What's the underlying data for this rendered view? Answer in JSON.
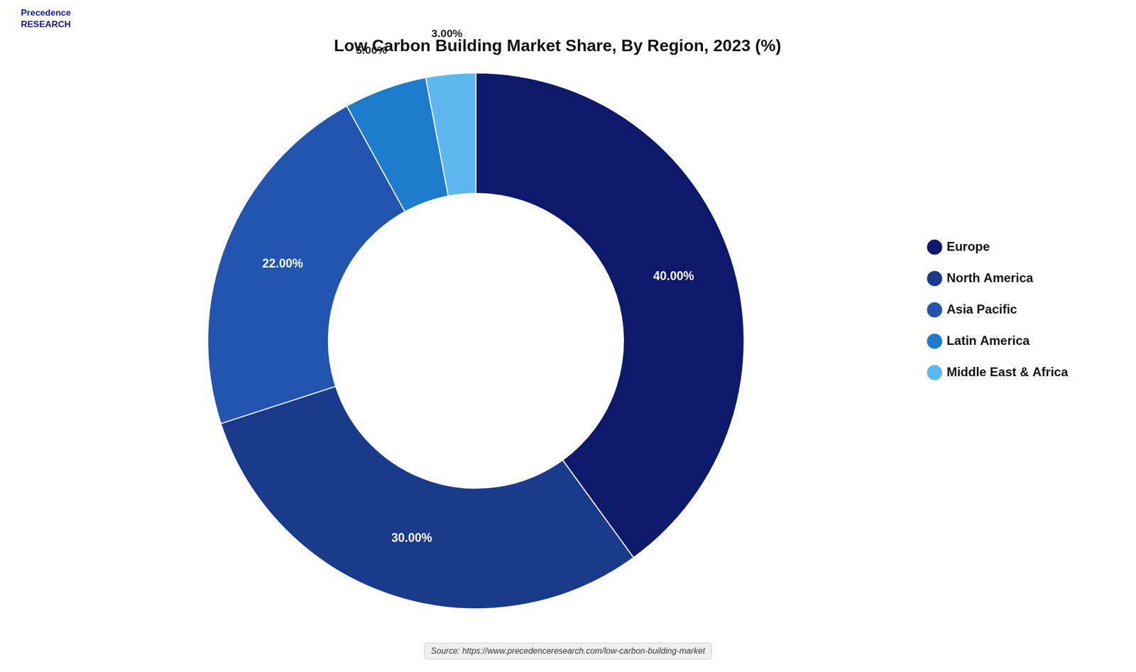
{
  "chart_data": {
    "type": "doughnut",
    "title": "Low Carbon Building Market Share, By Region, 2023 (%)",
    "categories": [
      "Europe",
      "North America",
      "Asia Pacific",
      "Latin America",
      "Middle East & Africa"
    ],
    "values": [
      40.0,
      30.0,
      22.0,
      5.0,
      3.0
    ],
    "value_labels": [
      "40.00%",
      "30.00%",
      "22.00%",
      "5.00%",
      "3.00%"
    ],
    "colors": [
      "#0d1a6b",
      "#1a3a8c",
      "#2255b0",
      "#1e7ccc",
      "#5db8f0"
    ],
    "data_labels": true,
    "legend": "right",
    "annotations": [
      "Precedence\nRESEARCH",
      "Source: https://www.precedenceresearch.com/low-carbon-building-market"
    ]
  }
}
